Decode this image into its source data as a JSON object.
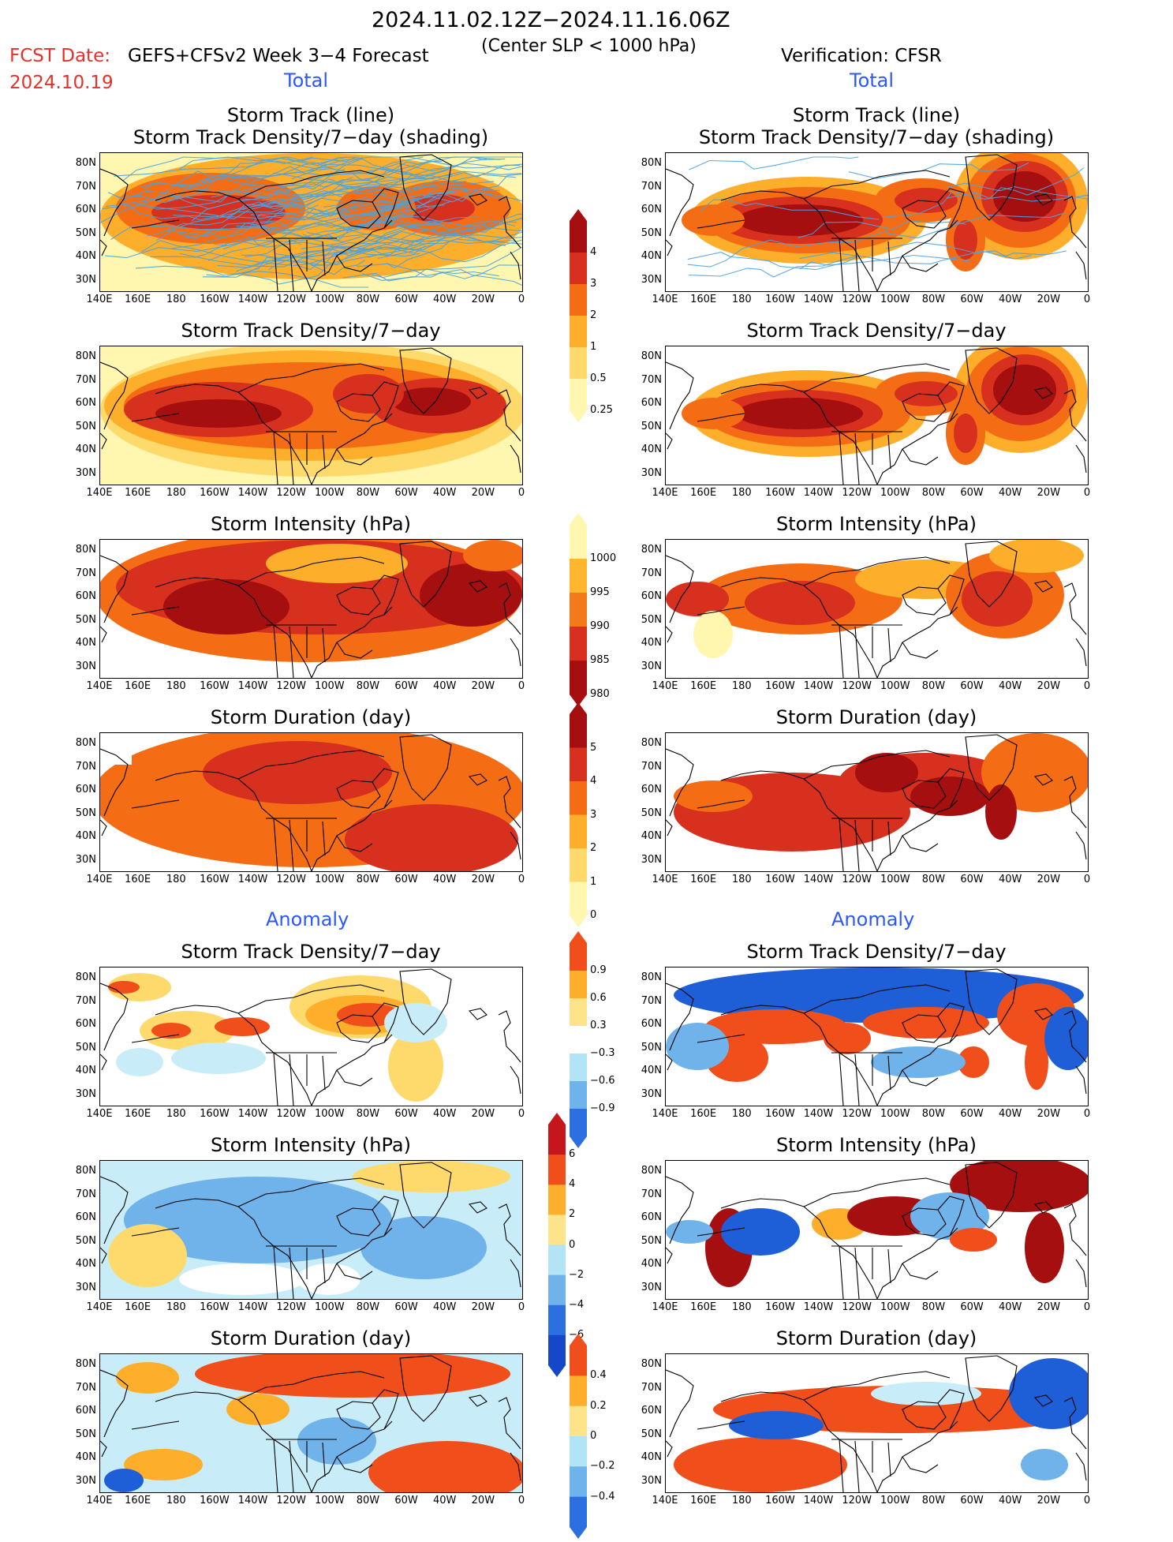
{
  "header": {
    "date_range": "2024.11.02.12Z−2024.11.16.06Z",
    "fcst_label": "FCST Date:",
    "model": "GEFS+CFSv2 Week 3−4 Forecast",
    "criterion": "(Center SLP < 1000 hPa)",
    "verification": "Verification: CFSR",
    "fcst_date": "2024.10.19"
  },
  "sections": {
    "total": "Total",
    "anomaly": "Anomaly"
  },
  "panel_titles": {
    "track_line": "Storm Track (line)",
    "track_shading": "Storm Track Density/7−day (shading)",
    "density": "Storm Track Density/7−day",
    "intensity": "Storm Intensity (hPa)",
    "duration": "Storm Duration (day)"
  },
  "axes": {
    "lat_labels": [
      "80N",
      "70N",
      "60N",
      "50N",
      "40N",
      "30N"
    ],
    "lon_labels": [
      "140E",
      "160E",
      "180",
      "160W",
      "140W",
      "120W",
      "100W",
      "80W",
      "60W",
      "40W",
      "20W",
      "0"
    ]
  },
  "colorbars": {
    "density_total": {
      "labels": [
        "4",
        "3",
        "2",
        "1",
        "0.5",
        "0.25"
      ],
      "colors": [
        "#a50f0f",
        "#d7301f",
        "#f46d15",
        "#fdae2b",
        "#fed96b",
        "#fff6b0"
      ]
    },
    "intensity_total": {
      "labels": [
        "1000",
        "995",
        "990",
        "985",
        "980"
      ],
      "colors": [
        "#fff6b0",
        "#fdb62e",
        "#f27a1b",
        "#d7301f",
        "#a50f0f"
      ]
    },
    "duration_total": {
      "labels": [
        "5",
        "4",
        "3",
        "2",
        "1",
        "0"
      ],
      "colors": [
        "#a50f0f",
        "#d7301f",
        "#f46d15",
        "#fdae2b",
        "#fed96b",
        "#fff6b0"
      ]
    },
    "density_anom": {
      "labels": [
        "0.9",
        "0.6",
        "0.3",
        "−0.3",
        "−0.6",
        "−0.9"
      ],
      "colors": [
        "#f04e1a",
        "#fdae2b",
        "#fde38a",
        "#ffffff",
        "#b3e4f5",
        "#6fb3ea",
        "#2c6fe0"
      ]
    },
    "intensity_anom": {
      "labels": [
        "6",
        "4",
        "2",
        "0",
        "−2",
        "−4",
        "−6"
      ],
      "colors": [
        "#c4161c",
        "#f04e1a",
        "#fdae2b",
        "#fde38a",
        "#b3e4f5",
        "#6fb3ea",
        "#2c6fe0",
        "#1448c8"
      ]
    },
    "duration_anom": {
      "labels": [
        "0.4",
        "0.2",
        "0",
        "−0.2",
        "−0.4"
      ],
      "colors": [
        "#f04e1a",
        "#fdae2b",
        "#fde38a",
        "#b3e4f5",
        "#6fb3ea",
        "#2c6fe0"
      ]
    }
  },
  "colors": {
    "dark_red": "#a50f0f",
    "red": "#d7301f",
    "orange": "#f46d15",
    "amber": "#fdae2b",
    "yellow": "#fed96b",
    "pale": "#fff6b0",
    "track_line": "#4aa3df",
    "deep_blue": "#1e5fd8",
    "mid_blue": "#6fb3ea",
    "light_blue": "#c8ecf8",
    "anom_red": "#f04e1a"
  }
}
